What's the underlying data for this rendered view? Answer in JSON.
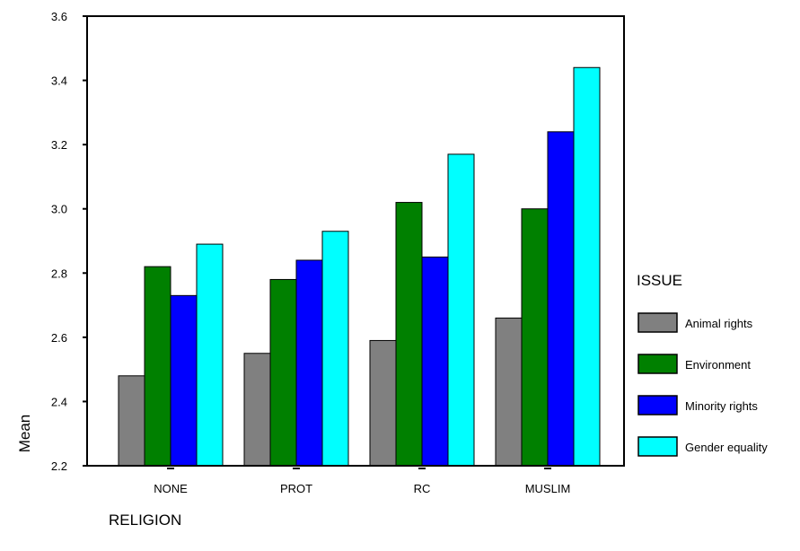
{
  "chart_data": {
    "type": "bar",
    "categories": [
      "NONE",
      "PROT",
      "RC",
      "MUSLIM"
    ],
    "series": [
      {
        "name": "Animal rights",
        "color": "#808080",
        "values": [
          2.48,
          2.55,
          2.59,
          2.66
        ]
      },
      {
        "name": "Environment",
        "color": "#008000",
        "values": [
          2.82,
          2.78,
          3.02,
          3.0
        ]
      },
      {
        "name": "Minority rights",
        "color": "#0000ff",
        "values": [
          2.73,
          2.84,
          2.85,
          3.24
        ]
      },
      {
        "name": "Gender equality",
        "color": "#00ffff",
        "values": [
          2.89,
          2.93,
          3.17,
          3.44
        ]
      }
    ],
    "xlabel": "RELIGION",
    "ylabel": "Mean",
    "ylim": [
      2.2,
      3.6
    ],
    "yticks": [
      2.2,
      2.4,
      2.6,
      2.8,
      3.0,
      3.2,
      3.4,
      3.6
    ],
    "ytick_labels": [
      "2.2",
      "2.4",
      "2.6",
      "2.8",
      "3.0",
      "3.2",
      "3.4",
      "3.6"
    ],
    "legend": {
      "title": "ISSUE",
      "position": "right"
    },
    "grid": false
  }
}
